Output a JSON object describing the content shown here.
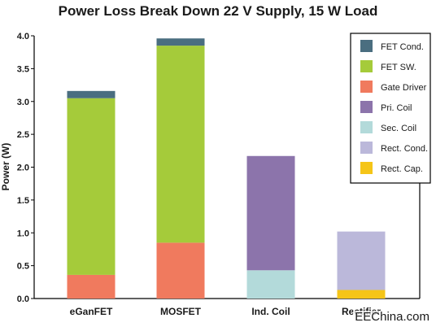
{
  "chart_data": {
    "type": "bar",
    "stacked": true,
    "title": "Power Loss Break Down 22 V Supply, 15 W Load",
    "xlabel": "",
    "ylabel": "Power (W)",
    "ylim": [
      0,
      4.0
    ],
    "yticks": [
      "0.0",
      "0.5",
      "1.0",
      "1.5",
      "2.0",
      "2.5",
      "3.0",
      "3.5",
      "4.0"
    ],
    "categories": [
      "eGanFET",
      "MOSFET",
      "Ind. Coil",
      "Rectifier"
    ],
    "grid": false,
    "legend_position": "top-right",
    "series": [
      {
        "name": "Rect. Cap.",
        "color": "#f5c518",
        "values": [
          0,
          0,
          0,
          0.13
        ]
      },
      {
        "name": "Rect. Cond.",
        "color": "#bbb8da",
        "values": [
          0,
          0,
          0,
          0.89
        ]
      },
      {
        "name": "Sec. Coil",
        "color": "#b3dada",
        "values": [
          0,
          0,
          0.43,
          0
        ]
      },
      {
        "name": "Pri. Coil",
        "color": "#8c74ab",
        "values": [
          0,
          0,
          1.74,
          0
        ]
      },
      {
        "name": "Gate Driver",
        "color": "#f07a5e",
        "values": [
          0.36,
          0.85,
          0,
          0
        ]
      },
      {
        "name": "FET SW.",
        "color": "#a5cb3a",
        "values": [
          2.69,
          3.0,
          0,
          0
        ]
      },
      {
        "name": "FET Cond.",
        "color": "#4a6e80",
        "values": [
          0.11,
          0.11,
          0,
          0
        ]
      }
    ],
    "legend_order": [
      "FET Cond.",
      "FET SW.",
      "Gate Driver",
      "Pri. Coil",
      "Sec. Coil",
      "Rect. Cond.",
      "Rect. Cap."
    ]
  },
  "watermark": "EEChina.com"
}
